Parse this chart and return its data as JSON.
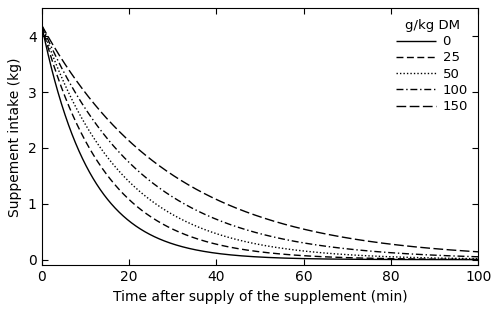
{
  "xlabel": "Time after supply of the supplement (min)",
  "ylabel": "Suppement intake (kg)",
  "x_min": 0,
  "x_max": 100,
  "y_min": -0.1,
  "y_max": 4.5,
  "x_ticks": [
    0,
    20,
    40,
    60,
    80,
    100
  ],
  "y_ticks": [
    0,
    1,
    2,
    3,
    4
  ],
  "legend_title": "g/kg DM",
  "legend_labels": [
    "0",
    "25",
    "50",
    "100",
    "150"
  ],
  "initial_value": 4.2,
  "decay_rates": [
    0.09,
    0.068,
    0.055,
    0.044,
    0.034
  ],
  "line_color": "#000000",
  "background_color": "#ffffff",
  "font_size": 10,
  "legend_font_size": 9.5
}
